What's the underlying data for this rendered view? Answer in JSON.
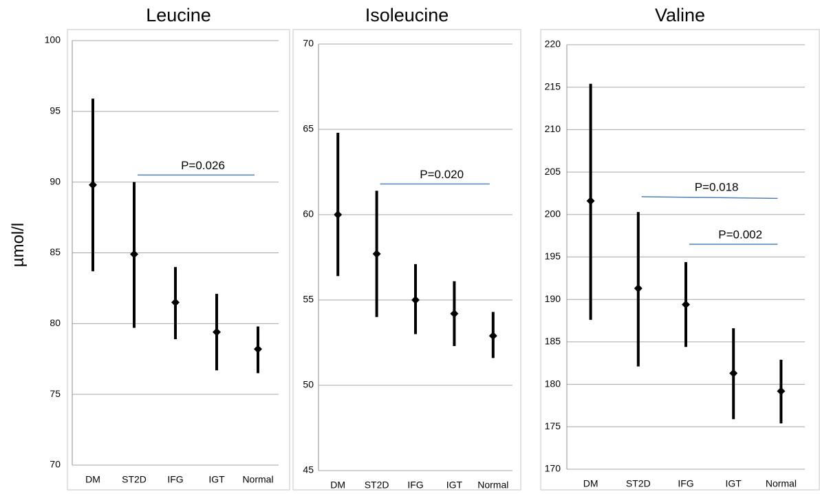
{
  "ylabel": "µmol/l",
  "colors": {
    "grid": "#a6a6a6",
    "frame": "#c6c6c6",
    "marker": "#000000",
    "p_line": "#4f81bd"
  },
  "chart_data": [
    {
      "type": "scatter",
      "title": "Leucine",
      "xlabel": "",
      "ylabel": "µmol/l",
      "categories": [
        "DM",
        "ST2D",
        "IFG",
        "IGT",
        "Normal"
      ],
      "ylim": [
        70,
        100
      ],
      "ytick_step": 5,
      "ytick_labels": [
        "70",
        "75",
        "80",
        "85",
        "90",
        "95",
        "100"
      ],
      "grid": true,
      "legend": "none",
      "series": [
        {
          "values": [
            89.8,
            84.9,
            81.5,
            79.4,
            78.2
          ],
          "lower": [
            83.7,
            79.7,
            78.9,
            76.7,
            76.5
          ],
          "upper": [
            95.9,
            90.0,
            84.0,
            82.1,
            79.8
          ]
        }
      ],
      "annotations": [
        {
          "text": "P=0.026",
          "from": "ST2D",
          "to": "Normal",
          "y_start": 90.5,
          "y_end": 90.5
        }
      ]
    },
    {
      "type": "scatter",
      "title": "Isoleucine",
      "xlabel": "",
      "ylabel": "",
      "categories": [
        "DM",
        "ST2D",
        "IFG",
        "IGT",
        "Normal"
      ],
      "ylim": [
        45,
        70
      ],
      "ytick_step": 5,
      "ytick_labels": [
        "45",
        "50",
        "55",
        "60",
        "65",
        "70"
      ],
      "grid": true,
      "legend": "none",
      "series": [
        {
          "values": [
            60.0,
            57.7,
            55.0,
            54.2,
            52.9
          ],
          "lower": [
            56.4,
            54.0,
            53.0,
            52.3,
            51.6
          ],
          "upper": [
            64.8,
            61.4,
            57.1,
            56.1,
            54.3
          ]
        }
      ],
      "annotations": [
        {
          "text": "P=0.020",
          "from": "ST2D",
          "to": "Normal",
          "y_start": 61.8,
          "y_end": 61.8
        }
      ]
    },
    {
      "type": "scatter",
      "title": "Valine",
      "xlabel": "",
      "ylabel": "",
      "categories": [
        "DM",
        "ST2D",
        "IFG",
        "IGT",
        "Normal"
      ],
      "ylim": [
        170,
        220
      ],
      "ytick_step": 5,
      "ytick_labels": [
        "170",
        "175",
        "180",
        "185",
        "190",
        "195",
        "200",
        "205",
        "210",
        "215",
        "220"
      ],
      "grid": true,
      "legend": "none",
      "series": [
        {
          "values": [
            201.6,
            191.3,
            189.4,
            181.3,
            179.2
          ],
          "lower": [
            187.6,
            182.1,
            184.4,
            175.9,
            175.4
          ],
          "upper": [
            215.4,
            200.3,
            194.4,
            186.6,
            182.9
          ]
        }
      ],
      "annotations": [
        {
          "text": "P=0.018",
          "from": "ST2D",
          "to": "Normal",
          "y_start": 202.1,
          "y_end": 201.9
        },
        {
          "text": "P=0.002",
          "from": "IFG",
          "to": "Normal",
          "y_start": 196.5,
          "y_end": 196.5
        }
      ]
    }
  ]
}
